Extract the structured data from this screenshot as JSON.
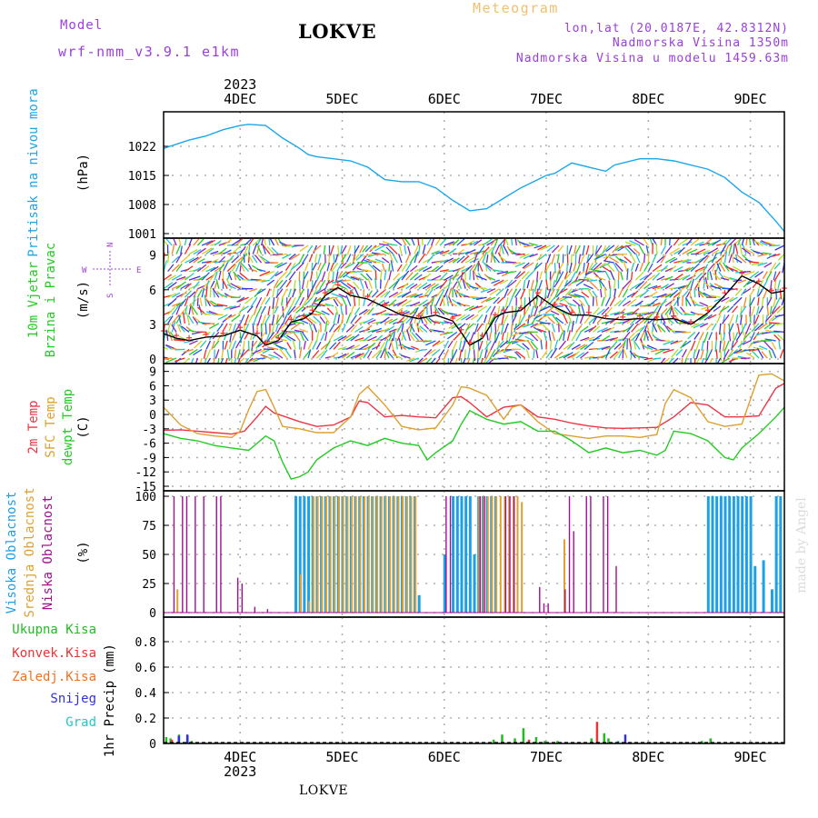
{
  "header": {
    "model_label": "Model",
    "model_name": "wrf-nmm_v3.9.1 e1km",
    "title": "LOKVE",
    "product": "Meteogram",
    "lonlat": "lon,lat (20.0187E, 42.8312N)",
    "elevation": "Nadmorska Visina 1350m",
    "model_elevation": "Nadmorska Visina u modelu 1459.63m",
    "watermark": "made by Angel",
    "bottom_station": "LOKVE"
  },
  "time_axis": {
    "year": "2023",
    "days": [
      "4DEC",
      "5DEC",
      "6DEC",
      "7DEC",
      "8DEC",
      "9DEC"
    ],
    "start_hour": 15,
    "hours_total": 146
  },
  "colors": {
    "pressure": "#1aa7ea",
    "temp2m": "#ee3344",
    "sfc": "#dda030",
    "dewpt": "#22cc22",
    "high_cloud": "#1ea0e6",
    "mid_cloud": "#e0a030",
    "low_cloud": "#a01090",
    "ukupna": "#22bb22",
    "konvek": "#ee3333",
    "zaledj": "#f07020",
    "snijeg": "#3030e0",
    "grad": "#22c8c8",
    "model_text": "#9a40d8",
    "meteogram_text": "#f0c070"
  },
  "chart_data": [
    {
      "type": "line",
      "panel": "pressure",
      "ylabel": "Pritisak na nivou mora",
      "unit": "(hPa)",
      "yticks": [
        "1001",
        "1008",
        "1015",
        "1022"
      ],
      "ylim": [
        1001,
        1029
      ],
      "series": [
        {
          "color": "pressure",
          "x": [
            0,
            3,
            6,
            10,
            14,
            18,
            20,
            24,
            28,
            32,
            34,
            36,
            40,
            44,
            48,
            52,
            56,
            60,
            64,
            68,
            72,
            76,
            80,
            84,
            88,
            90,
            92,
            96,
            100,
            104,
            106,
            108,
            112,
            116,
            120,
            124,
            128,
            132,
            136,
            140,
            144,
            146
          ],
          "values": [
            1021.5,
            1022.5,
            1023.5,
            1024.5,
            1026,
            1027,
            1027.3,
            1027,
            1024,
            1021.5,
            1020,
            1019.5,
            1019,
            1018.5,
            1017,
            1014,
            1013.5,
            1013.5,
            1012,
            1009,
            1006.5,
            1007,
            1009.5,
            1012,
            1014,
            1015,
            1015.5,
            1018,
            1017,
            1016,
            1017.5,
            1018,
            1019,
            1019,
            1018.5,
            1017.5,
            1016.5,
            1014.5,
            1011,
            1008.5,
            1004,
            1001.5
          ]
        }
      ]
    },
    {
      "type": "line",
      "panel": "wind",
      "ylabel": "10m Vjetar Brzina i Pravac",
      "unit": "(m/s)",
      "yticks": [
        "0",
        "3",
        "6",
        "9"
      ],
      "ylim": [
        0,
        10
      ],
      "compass": [
        "N",
        "S",
        "W",
        "E"
      ],
      "series": [
        {
          "color": "#000000",
          "x": [
            0,
            3,
            6,
            10,
            14,
            18,
            22,
            24,
            27,
            30,
            33,
            35,
            38,
            41,
            44,
            48,
            52,
            56,
            60,
            64,
            68,
            70,
            72,
            75,
            78,
            80,
            84,
            88,
            92,
            96,
            100,
            104,
            108,
            112,
            116,
            120,
            124,
            128,
            132,
            136,
            140,
            143,
            146
          ],
          "values": [
            2.2,
            1.8,
            1.6,
            1.9,
            2,
            2.5,
            2,
            1.2,
            1.6,
            3.2,
            3.5,
            4,
            5.5,
            6.2,
            5.5,
            5.2,
            4.5,
            3.8,
            3.5,
            3.8,
            3.3,
            2.3,
            1.2,
            1.8,
            3.6,
            4,
            4.2,
            5.5,
            4.5,
            3.8,
            3.8,
            3.5,
            3.4,
            3.5,
            3.4,
            3.5,
            3,
            4,
            5.5,
            7.2,
            6.5,
            5.7,
            5.9
          ]
        }
      ]
    },
    {
      "type": "line",
      "panel": "temperature",
      "ylabel": "2m Temp / SFC Temp / dewpt Temp",
      "unit": "(C)",
      "yticks": [
        "-15",
        "-12",
        "-9",
        "-6",
        "-3",
        "0",
        "3",
        "6",
        "9"
      ],
      "ylim": [
        -15,
        9.5
      ],
      "series": [
        {
          "name": "2m Temp",
          "color": "temp2m",
          "x": [
            0,
            4,
            8,
            12,
            16,
            19,
            22,
            24,
            26,
            28,
            32,
            36,
            40,
            44,
            46,
            48,
            52,
            56,
            60,
            64,
            68,
            70,
            72,
            76,
            80,
            84,
            88,
            92,
            96,
            100,
            104,
            108,
            112,
            116,
            120,
            124,
            128,
            132,
            136,
            140,
            144,
            146
          ],
          "values": [
            -3.3,
            -3.2,
            -3.5,
            -3.8,
            -4.1,
            -3.5,
            -0.5,
            1.7,
            0.3,
            -0.3,
            -1.5,
            -2.5,
            -2.2,
            -0.5,
            2.8,
            2.5,
            -0.5,
            -0.2,
            -0.5,
            -0.7,
            3.5,
            3.7,
            2.5,
            -0.5,
            1.5,
            2,
            -0.5,
            -1,
            -1.8,
            -2.4,
            -2.8,
            -2.9,
            -2.8,
            -2.7,
            -0.5,
            2.5,
            2,
            -0.5,
            -0.5,
            -0.3,
            5.5,
            6.5
          ]
        },
        {
          "name": "SFC Temp",
          "color": "sfc",
          "x": [
            0,
            4,
            8,
            12,
            16,
            18,
            20,
            22,
            24,
            26,
            28,
            32,
            36,
            40,
            44,
            46,
            48,
            52,
            56,
            60,
            64,
            68,
            70,
            72,
            76,
            80,
            82,
            84,
            88,
            92,
            96,
            100,
            104,
            108,
            112,
            116,
            118,
            120,
            124,
            128,
            132,
            136,
            140,
            143,
            146
          ],
          "values": [
            1.5,
            -2.2,
            -4,
            -4.5,
            -4.8,
            -3.5,
            1,
            4.8,
            5.2,
            1.5,
            -2.5,
            -3,
            -3.8,
            -3.8,
            -0.5,
            4.2,
            5.8,
            2,
            -2.5,
            -3.2,
            -2.8,
            2,
            5.8,
            5.5,
            4,
            -1,
            1.5,
            2,
            -1.5,
            -4,
            -4.5,
            -5,
            -4.5,
            -4.5,
            -4.8,
            -4.2,
            2.3,
            5.2,
            3.5,
            -1.5,
            -2.5,
            -2,
            8.2,
            8.5,
            7
          ]
        },
        {
          "name": "dewpt Temp",
          "color": "dewpt",
          "x": [
            0,
            4,
            8,
            12,
            16,
            20,
            24,
            26,
            28,
            30,
            32,
            34,
            36,
            40,
            44,
            48,
            52,
            56,
            60,
            62,
            64,
            68,
            70,
            72,
            76,
            80,
            84,
            88,
            92,
            96,
            100,
            104,
            108,
            112,
            116,
            118,
            120,
            124,
            128,
            132,
            134,
            136,
            140,
            144,
            146
          ],
          "values": [
            -4,
            -5,
            -5.5,
            -6.5,
            -7,
            -7.5,
            -4.5,
            -5.5,
            -10,
            -13.5,
            -13,
            -12,
            -9.5,
            -7,
            -5.5,
            -6.5,
            -5,
            -6,
            -6.5,
            -9.5,
            -8,
            -5.5,
            -2,
            0.8,
            -1,
            -2,
            -1.5,
            -3.5,
            -3.5,
            -5.5,
            -8,
            -7,
            -8,
            -7.5,
            -8.5,
            -7.5,
            -3.5,
            -4,
            -5.5,
            -9,
            -9.5,
            -7,
            -4,
            -0.5,
            1.5
          ]
        }
      ]
    },
    {
      "type": "bar",
      "panel": "cloud",
      "ylabel": "Visoka Oblacnost / Srednja Oblacnost / Niska Oblacnost",
      "unit": "(%)",
      "yticks": [
        "0",
        "25",
        "50",
        "75",
        "100"
      ],
      "ylim": [
        0,
        100
      ],
      "series": [
        {
          "name": "Visoka Oblacnost",
          "color": "high_cloud",
          "values": [
            0,
            0,
            0,
            0,
            0,
            0,
            0,
            0,
            0,
            0,
            0,
            0,
            0,
            0,
            0,
            0,
            0,
            0,
            0,
            0,
            0,
            0,
            0,
            0,
            0,
            0,
            0,
            0,
            0,
            0,
            0,
            100,
            100,
            100,
            100,
            100,
            100,
            100,
            100,
            100,
            100,
            100,
            100,
            100,
            100,
            100,
            100,
            100,
            100,
            100,
            100,
            100,
            100,
            100,
            100,
            100,
            100,
            100,
            100,
            100,
            15,
            0,
            0,
            0,
            0,
            0,
            50,
            0,
            100,
            100,
            100,
            100,
            100,
            50,
            100,
            100,
            100,
            100,
            100,
            0,
            0,
            0,
            0,
            0,
            0,
            0,
            0,
            0,
            0,
            0,
            0,
            0,
            0,
            0,
            0,
            0,
            0,
            0,
            0,
            0,
            0,
            0,
            0,
            0,
            0,
            0,
            0,
            0,
            0,
            0,
            0,
            0,
            0,
            0,
            0,
            0,
            0,
            0,
            0,
            0,
            0,
            0,
            0,
            0,
            0,
            0,
            0,
            0,
            100,
            100,
            100,
            100,
            100,
            100,
            100,
            100,
            100,
            100,
            100,
            40,
            0,
            45,
            0,
            20,
            100,
            100
          ]
        },
        {
          "name": "Srednja Oblacnost",
          "color": "mid_cloud",
          "values": [
            0,
            0,
            0,
            20,
            0,
            0,
            0,
            0,
            0,
            0,
            0,
            0,
            0,
            0,
            0,
            0,
            0,
            0,
            0,
            0,
            0,
            0,
            0,
            0,
            0,
            0,
            0,
            0,
            0,
            0,
            0,
            0,
            33,
            0,
            10,
            100,
            100,
            100,
            100,
            100,
            100,
            100,
            100,
            100,
            100,
            100,
            100,
            100,
            100,
            100,
            100,
            100,
            100,
            100,
            100,
            100,
            100,
            100,
            100,
            100,
            0,
            0,
            0,
            0,
            0,
            0,
            0,
            0,
            0,
            0,
            0,
            0,
            0,
            0,
            100,
            100,
            100,
            100,
            100,
            100,
            100,
            100,
            100,
            100,
            95,
            0,
            0,
            0,
            0,
            0,
            0,
            0,
            0,
            0,
            63,
            0,
            0,
            0,
            0,
            0,
            0,
            0,
            0,
            0,
            0,
            0,
            0,
            0,
            0,
            0,
            0,
            0,
            0,
            0,
            0,
            0,
            0,
            0,
            0,
            0,
            0,
            0,
            0,
            0,
            0,
            0,
            0,
            0,
            0,
            0,
            0,
            0,
            0,
            0,
            0,
            0,
            0,
            0,
            0,
            0,
            0,
            0,
            0,
            0,
            0,
            0,
            0
          ]
        },
        {
          "name": "Niska Oblacnost",
          "color": "low_cloud",
          "values": [
            0,
            0,
            100,
            0,
            100,
            100,
            0,
            100,
            0,
            100,
            0,
            0,
            100,
            100,
            0,
            0,
            0,
            30,
            25,
            0,
            0,
            5,
            0,
            0,
            3,
            0,
            0,
            0,
            0,
            0,
            0,
            0,
            0,
            0,
            0,
            0,
            0,
            0,
            0,
            0,
            0,
            0,
            0,
            0,
            0,
            0,
            0,
            0,
            0,
            0,
            0,
            0,
            0,
            0,
            0,
            0,
            0,
            0,
            0,
            0,
            0,
            0,
            0,
            0,
            0,
            0,
            100,
            100,
            0,
            0,
            0,
            0,
            0,
            0,
            100,
            100,
            0,
            0,
            0,
            0,
            100,
            100,
            100,
            0,
            0,
            0,
            0,
            0,
            22,
            8,
            8,
            0,
            0,
            0,
            20,
            100,
            70,
            0,
            0,
            100,
            100,
            0,
            0,
            100,
            100,
            0,
            40,
            0,
            0,
            0,
            0,
            0,
            0,
            0,
            0,
            0,
            0,
            0,
            0,
            0,
            0,
            0,
            0,
            0,
            0,
            0,
            0,
            0,
            0,
            0,
            0,
            0,
            0,
            0,
            0,
            0,
            0,
            0,
            0,
            0,
            0,
            0,
            0,
            0,
            0,
            0,
            0,
            0,
            0
          ]
        }
      ]
    },
    {
      "type": "bar",
      "panel": "precip",
      "ylabel": "1hr Precip",
      "unit": "(mm)",
      "yticks": [
        "0",
        "0.2",
        "0.4",
        "0.6",
        "0.8"
      ],
      "ylim": [
        0,
        0.95
      ],
      "series": [
        {
          "name": "Ukupna Kisa",
          "color": "ukupna",
          "x": [
            1,
            2,
            4,
            6,
            7,
            78,
            80,
            83,
            85,
            88,
            90,
            93,
            101,
            104,
            105,
            127,
            129
          ],
          "values": [
            0.05,
            0.04,
            0.07,
            0.06,
            0.02,
            0.03,
            0.07,
            0.04,
            0.12,
            0.05,
            0.02,
            0.02,
            0.04,
            0.08,
            0.04,
            0.02,
            0.04
          ]
        },
        {
          "name": "Konvek.Kisa",
          "color": "konvek",
          "x": [
            2,
            86,
            102
          ],
          "values": [
            0.03,
            0.03,
            0.17
          ]
        },
        {
          "name": "Zaledj.Kisa",
          "color": "zaledj",
          "x": [],
          "values": []
        },
        {
          "name": "Snijeg",
          "color": "snijeg",
          "x": [
            3,
            5,
            108
          ],
          "values": [
            0.06,
            0.07,
            0.07
          ]
        },
        {
          "name": "Grad",
          "color": "grad",
          "x": [
            106
          ],
          "values": [
            0.02
          ]
        }
      ]
    }
  ]
}
